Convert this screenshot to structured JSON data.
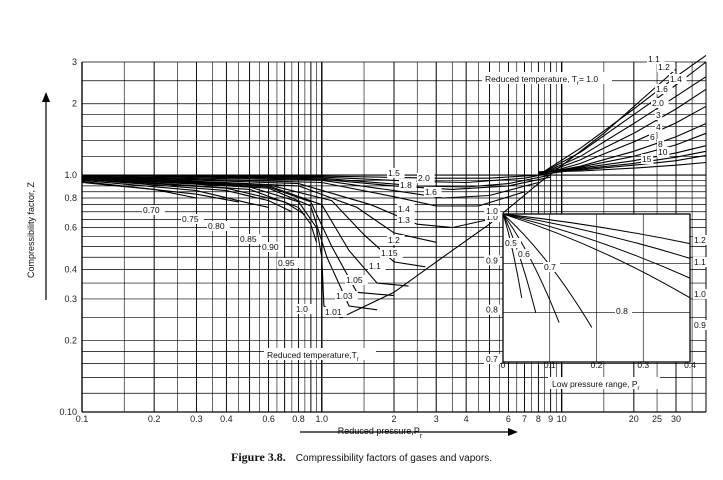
{
  "caption": {
    "figure_label": "Figure 3.8.",
    "text": "Compressibility factors of gases and vapors."
  },
  "chart_data": [
    {
      "type": "line",
      "name": "main",
      "log_x": true,
      "log_y": true,
      "xlim": [
        0.1,
        40
      ],
      "ylim": [
        0.1,
        3
      ],
      "xlabel": "Reduced pressure,P",
      "xlabel_sub": "r",
      "ylabel": "Compressibility factor, Z",
      "x_ticks": [
        0.1,
        0.2,
        0.3,
        0.4,
        0.6,
        0.8,
        1.0,
        2,
        3,
        4,
        6,
        7,
        8,
        9,
        10,
        20,
        25,
        30
      ],
      "x_tick_labels": [
        "0.1",
        "0.2",
        "0.3",
        "0.4",
        "0.6",
        "0.8",
        "1.0",
        "2",
        "3",
        "4",
        "6",
        "7",
        "8",
        "9",
        "10",
        "20",
        "25",
        "30"
      ],
      "y_ticks": [
        0.1,
        0.2,
        0.3,
        0.4,
        0.6,
        0.8,
        1.0,
        2,
        3
      ],
      "y_tick_labels": [
        "0.10",
        "0.2",
        "0.3",
        "0.4",
        "0.6",
        "0.8",
        "1.0",
        "2",
        "3"
      ],
      "grid": true,
      "region_labels": [
        {
          "text": "Reduced temperature, T",
          "sub": "r",
          "suffix": "= 1.0"
        },
        {
          "text": "Reduced temperature,T",
          "sub": "r",
          "suffix": ""
        }
      ],
      "series": [
        {
          "name": "0.70",
          "x": [
            0.1,
            0.2,
            0.3
          ],
          "y": [
            0.93,
            0.87,
            0.8
          ]
        },
        {
          "name": "0.75",
          "x": [
            0.1,
            0.3,
            0.45
          ],
          "y": [
            0.94,
            0.83,
            0.77
          ]
        },
        {
          "name": "0.80",
          "x": [
            0.1,
            0.3,
            0.5,
            0.6
          ],
          "y": [
            0.95,
            0.86,
            0.76,
            0.73
          ]
        },
        {
          "name": "0.85",
          "x": [
            0.1,
            0.4,
            0.6,
            0.75
          ],
          "y": [
            0.96,
            0.86,
            0.78,
            0.7
          ]
        },
        {
          "name": "0.90",
          "x": [
            0.1,
            0.4,
            0.7,
            0.85
          ],
          "y": [
            0.96,
            0.88,
            0.77,
            0.68
          ]
        },
        {
          "name": "0.95",
          "x": [
            0.1,
            0.5,
            0.8,
            0.9,
            0.95
          ],
          "y": [
            0.97,
            0.87,
            0.73,
            0.62,
            0.52
          ]
        },
        {
          "name": "1.0",
          "x": [
            0.1,
            0.5,
            0.8,
            0.95,
            1.0,
            1.02,
            1.2,
            2,
            3,
            5,
            8,
            15,
            30
          ],
          "y": [
            0.97,
            0.89,
            0.77,
            0.6,
            0.45,
            0.28,
            0.25,
            0.32,
            0.43,
            0.62,
            0.92,
            1.5,
            2.8
          ]
        },
        {
          "name": "1.01",
          "x": [
            0.1,
            0.6,
            0.9,
            1.05,
            1.3,
            1.7
          ],
          "y": [
            0.98,
            0.88,
            0.74,
            0.45,
            0.28,
            0.27
          ]
        },
        {
          "name": "1.03",
          "x": [
            0.1,
            0.6,
            0.9,
            1.1,
            1.4,
            2.0
          ],
          "y": [
            0.98,
            0.89,
            0.77,
            0.5,
            0.32,
            0.31
          ]
        },
        {
          "name": "1.05",
          "x": [
            0.1,
            0.6,
            1.0,
            1.3,
            1.7,
            2.3
          ],
          "y": [
            0.98,
            0.9,
            0.75,
            0.48,
            0.35,
            0.34
          ]
        },
        {
          "name": "1.1",
          "x": [
            0.1,
            0.6,
            1.1,
            1.5,
            2.0,
            2.7
          ],
          "y": [
            0.98,
            0.91,
            0.78,
            0.56,
            0.43,
            0.41
          ]
        },
        {
          "name": "1.15",
          "x": [
            0.1,
            0.8,
            1.4,
            2.0,
            3.0
          ],
          "y": [
            0.99,
            0.9,
            0.73,
            0.57,
            0.52
          ]
        },
        {
          "name": "1.2",
          "x": [
            0.1,
            0.8,
            1.6,
            2.5,
            3.5,
            5
          ],
          "y": [
            0.99,
            0.92,
            0.75,
            0.62,
            0.6,
            0.65
          ]
        },
        {
          "name": "1.3",
          "x": [
            0.1,
            1.0,
            2.0,
            3.0,
            4.5,
            7
          ],
          "y": [
            0.99,
            0.93,
            0.81,
            0.74,
            0.74,
            0.85
          ]
        },
        {
          "name": "1.4",
          "x": [
            0.1,
            1.0,
            2.0,
            3.2,
            5,
            8
          ],
          "y": [
            0.99,
            0.95,
            0.86,
            0.8,
            0.82,
            0.93
          ]
        },
        {
          "name": "1.6",
          "x": [
            0.1,
            1.0,
            2.5,
            4,
            6,
            9
          ],
          "y": [
            1.0,
            0.97,
            0.9,
            0.89,
            0.92,
            1.0
          ]
        },
        {
          "name": "1.8",
          "x": [
            0.1,
            1.0,
            2.5,
            4,
            7,
            10
          ],
          "y": [
            1.0,
            0.98,
            0.94,
            0.93,
            0.97,
            1.04
          ]
        },
        {
          "name": "1.5",
          "x": [
            0.1,
            1.0,
            2.0,
            3.5,
            6,
            9
          ],
          "y": [
            1.0,
            0.96,
            0.9,
            0.87,
            0.9,
            0.98
          ]
        },
        {
          "name": "2.0",
          "x": [
            0.1,
            1.0,
            3,
            5,
            8,
            12
          ],
          "y": [
            1.0,
            0.99,
            0.97,
            0.97,
            1.0,
            1.06
          ]
        },
        {
          "name": "1.1",
          "x": [
            8,
            12,
            20,
            30,
            40
          ],
          "y": [
            1.0,
            1.3,
            1.9,
            2.6,
            3.2
          ]
        },
        {
          "name": "1.2",
          "x": [
            8,
            12,
            20,
            30,
            40
          ],
          "y": [
            1.0,
            1.25,
            1.8,
            2.4,
            3.0
          ]
        },
        {
          "name": "1.4",
          "x": [
            8,
            12,
            20,
            30,
            40
          ],
          "y": [
            1.0,
            1.2,
            1.65,
            2.15,
            2.6
          ]
        },
        {
          "name": "1.6",
          "x": [
            8,
            12,
            20,
            30,
            40
          ],
          "y": [
            1.0,
            1.16,
            1.5,
            1.9,
            2.3
          ]
        },
        {
          "name": "2.0",
          "x": [
            8,
            12,
            20,
            30,
            40
          ],
          "y": [
            1.0,
            1.12,
            1.38,
            1.66,
            1.95
          ]
        },
        {
          "name": "3",
          "x": [
            8,
            12,
            20,
            30,
            40
          ],
          "y": [
            1.01,
            1.09,
            1.26,
            1.45,
            1.65
          ]
        },
        {
          "name": "4",
          "x": [
            8,
            12,
            20,
            30,
            40
          ],
          "y": [
            1.02,
            1.08,
            1.2,
            1.34,
            1.5
          ]
        },
        {
          "name": "6",
          "x": [
            8,
            12,
            20,
            30,
            40
          ],
          "y": [
            1.03,
            1.07,
            1.15,
            1.24,
            1.33
          ]
        },
        {
          "name": "8",
          "x": [
            8,
            12,
            20,
            30,
            40
          ],
          "y": [
            1.03,
            1.06,
            1.12,
            1.19,
            1.26
          ]
        },
        {
          "name": "10",
          "x": [
            8,
            12,
            20,
            30,
            40
          ],
          "y": [
            1.03,
            1.05,
            1.1,
            1.15,
            1.21
          ]
        },
        {
          "name": "15",
          "x": [
            8,
            12,
            20,
            30,
            40
          ],
          "y": [
            1.03,
            1.04,
            1.07,
            1.1,
            1.13
          ]
        }
      ]
    },
    {
      "type": "line",
      "name": "inset",
      "title": "Low pressure range, P",
      "title_sub": "r",
      "xlim": [
        0,
        0.4
      ],
      "ylim": [
        0.7,
        1.0
      ],
      "x_ticks": [
        0,
        0.1,
        0.2,
        0.3,
        0.4
      ],
      "x_tick_labels": [
        "0",
        "0.1",
        "0.2",
        "0.3",
        "0.4"
      ],
      "y_ticks": [
        0.7,
        0.8,
        0.9,
        1.0
      ],
      "y_tick_labels": [
        "0.7",
        "0.8",
        "0.9",
        "1.0"
      ],
      "series": [
        {
          "name": "0.5",
          "x": [
            0,
            0.04
          ],
          "y": [
            1.0,
            0.83
          ]
        },
        {
          "name": "0.6",
          "x": [
            0,
            0.07
          ],
          "y": [
            1.0,
            0.8
          ]
        },
        {
          "name": "0.7",
          "x": [
            0,
            0.12
          ],
          "y": [
            1.0,
            0.78
          ]
        },
        {
          "name": "0.8",
          "x": [
            0,
            0.19
          ],
          "y": [
            1.0,
            0.77
          ]
        },
        {
          "name": "0.9",
          "x": [
            0,
            0.4
          ],
          "y": [
            1.0,
            0.83
          ]
        },
        {
          "name": "1.0",
          "x": [
            0,
            0.4
          ],
          "y": [
            1.0,
            0.87
          ]
        },
        {
          "name": "1.1",
          "x": [
            0,
            0.4
          ],
          "y": [
            1.0,
            0.91
          ]
        },
        {
          "name": "1.2",
          "x": [
            0,
            0.4
          ],
          "y": [
            1.0,
            0.94
          ]
        }
      ],
      "curve_labels": [
        "0.5",
        "0.6",
        "0.7",
        "0.8",
        "0.9",
        "1.0",
        "1.1",
        "1.2"
      ]
    }
  ],
  "main_curve_labels": [
    "0.70",
    "0.75",
    "0.80",
    "0.85",
    "0.90",
    "0.95",
    "1.0",
    "1.01",
    "1.03",
    "1.05",
    "1.1",
    "1.15",
    "1.2",
    "1.3",
    "1.4",
    "1.5",
    "1.6",
    "1.8",
    "2.0",
    "1.0"
  ],
  "high_curve_labels": [
    "1.1",
    "1.2",
    "1.4",
    "1.6",
    "2.0",
    "3",
    "4",
    "6",
    "8",
    "10",
    "15"
  ]
}
